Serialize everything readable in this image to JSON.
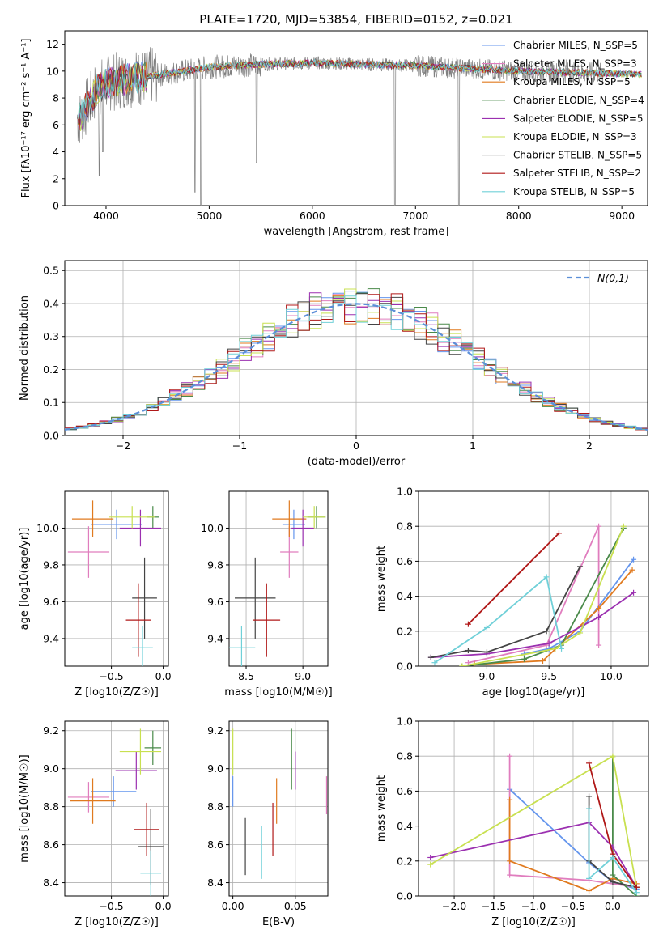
{
  "chart_data": [
    {
      "id": "spectrum",
      "type": "line",
      "title": "PLATE=1720, MJD=53854, FIBERID=0152, z=0.021",
      "xlabel": "wavelength [Angstrom, rest frame]",
      "ylabel": "Flux [fλ10⁻¹⁷ erg cm⁻² s⁻¹ A⁻¹]",
      "xlim": [
        3600,
        9250
      ],
      "ylim": [
        0,
        13
      ],
      "xticks": [
        4000,
        5000,
        6000,
        7000,
        8000,
        9000
      ],
      "yticks": [
        0,
        2,
        4,
        6,
        8,
        10,
        12
      ],
      "legend_position": "upper-right",
      "grid": false,
      "series": [
        {
          "name": "Chabrier MILES, N_SSP=5",
          "color": "#6495ed"
        },
        {
          "name": "Salpeter MILES, N_SSP=3",
          "color": "#e07dbe"
        },
        {
          "name": "Kroupa MILES, N_SSP=5",
          "color": "#e07a1f"
        },
        {
          "name": "Chabrier ELODIE, N_SSP=4",
          "color": "#4a8a4a"
        },
        {
          "name": "Salpeter ELODIE, N_SSP=5",
          "color": "#9b30b0"
        },
        {
          "name": "Kroupa ELODIE, N_SSP=3",
          "color": "#c8e050"
        },
        {
          "name": "Chabrier STELIB, N_SSP=5",
          "color": "#444444"
        },
        {
          "name": "Salpeter STELIB, N_SSP=2",
          "color": "#b01818"
        },
        {
          "name": "Kroupa STELIB, N_SSP=5",
          "color": "#70d0d8"
        }
      ],
      "data_color": "#808080",
      "continuum": [
        [
          3750,
          6.5
        ],
        [
          3900,
          8.5
        ],
        [
          4000,
          9.1
        ],
        [
          4200,
          9.4
        ],
        [
          4500,
          9.7
        ],
        [
          5000,
          10.3
        ],
        [
          5500,
          10.5
        ],
        [
          6000,
          10.6
        ],
        [
          6500,
          10.5
        ],
        [
          7000,
          10.4
        ],
        [
          7500,
          10.2
        ],
        [
          8000,
          10.0
        ],
        [
          8500,
          9.9
        ],
        [
          9000,
          9.8
        ],
        [
          9200,
          9.75
        ]
      ],
      "absorption_dips": [
        {
          "x": 3934,
          "y": 2.2
        },
        {
          "x": 3968,
          "y": 4.0
        },
        {
          "x": 4861,
          "y": 1.0
        },
        {
          "x": 4920,
          "y": 0.0
        },
        {
          "x": 5460,
          "y": 3.2
        },
        {
          "x": 6800,
          "y": 0.0
        },
        {
          "x": 7420,
          "y": 0.0
        }
      ]
    },
    {
      "id": "residuals",
      "type": "histogram",
      "xlabel": "(data-model)/error",
      "ylabel": "Normed distribution",
      "xlim": [
        -2.5,
        2.5
      ],
      "ylim": [
        0,
        0.53
      ],
      "xticks": [
        -2,
        -1,
        0,
        1,
        2
      ],
      "yticks": [
        0.0,
        0.1,
        0.2,
        0.3,
        0.4,
        0.5
      ],
      "grid": true,
      "reference_curve": {
        "name": "N(0,1)",
        "mean": 0,
        "sigma": 1,
        "color": "#5b8fd8"
      },
      "bin_width": 0.1
    },
    {
      "id": "age_vs_Z",
      "type": "errorbar",
      "xlabel": "Z [log10(Z/Z☉)]",
      "ylabel": "age  [log10(age/yr)]",
      "xlim": [
        -0.95,
        0.05
      ],
      "ylim": [
        9.25,
        10.2
      ],
      "xticks": [
        -0.5,
        0.0
      ],
      "yticks": [
        9.4,
        9.6,
        9.8,
        10.0
      ],
      "points": [
        {
          "c": "#6495ed",
          "x": -0.45,
          "xe": 0.25,
          "y": 10.02,
          "ye": 0.08
        },
        {
          "c": "#e07dbe",
          "x": -0.72,
          "xe": 0.2,
          "y": 9.87,
          "ye": 0.14
        },
        {
          "c": "#e07a1f",
          "x": -0.68,
          "xe": 0.2,
          "y": 10.05,
          "ye": 0.1
        },
        {
          "c": "#4a8a4a",
          "x": -0.1,
          "xe": 0.06,
          "y": 10.06,
          "ye": 0.06
        },
        {
          "c": "#9b30b0",
          "x": -0.22,
          "xe": 0.2,
          "y": 10.0,
          "ye": 0.1
        },
        {
          "c": "#c8e050",
          "x": -0.3,
          "xe": 0.22,
          "y": 10.06,
          "ye": 0.06
        },
        {
          "c": "#444444",
          "x": -0.18,
          "xe": 0.12,
          "y": 9.62,
          "ye": 0.22
        },
        {
          "c": "#b01818",
          "x": -0.24,
          "xe": 0.12,
          "y": 9.5,
          "ye": 0.2
        },
        {
          "c": "#70d0d8",
          "x": -0.2,
          "xe": 0.1,
          "y": 9.35,
          "ye": 0.12
        }
      ]
    },
    {
      "id": "age_vs_mass",
      "type": "errorbar",
      "xlabel": "mass [log10(M/M☉)]",
      "ylabel": "",
      "xlim": [
        8.35,
        9.22
      ],
      "ylim": [
        9.25,
        10.2
      ],
      "xticks": [
        8.5,
        9.0
      ],
      "yticks": [
        9.4,
        9.6,
        9.8,
        10.0
      ],
      "points": [
        {
          "c": "#6495ed",
          "x": 8.92,
          "xe": 0.1,
          "y": 10.02,
          "ye": 0.08
        },
        {
          "c": "#e07dbe",
          "x": 8.88,
          "xe": 0.08,
          "y": 9.87,
          "ye": 0.14
        },
        {
          "c": "#e07a1f",
          "x": 8.88,
          "xe": 0.15,
          "y": 10.05,
          "ye": 0.1
        },
        {
          "c": "#4a8a4a",
          "x": 9.12,
          "xe": 0.08,
          "y": 10.06,
          "ye": 0.06
        },
        {
          "c": "#9b30b0",
          "x": 9.0,
          "xe": 0.1,
          "y": 10.0,
          "ye": 0.1
        },
        {
          "c": "#c8e050",
          "x": 9.1,
          "xe": 0.1,
          "y": 10.06,
          "ye": 0.06
        },
        {
          "c": "#444444",
          "x": 8.58,
          "xe": 0.18,
          "y": 9.62,
          "ye": 0.22
        },
        {
          "c": "#b01818",
          "x": 8.68,
          "xe": 0.12,
          "y": 9.5,
          "ye": 0.2
        },
        {
          "c": "#70d0d8",
          "x": 8.46,
          "xe": 0.12,
          "y": 9.35,
          "ye": 0.12
        }
      ]
    },
    {
      "id": "weight_vs_age",
      "type": "line",
      "xlabel": "age  [log10(age/yr)]",
      "ylabel": "mass weight",
      "xlim": [
        8.45,
        10.3
      ],
      "ylim": [
        0,
        1.0
      ],
      "xticks": [
        9.0,
        9.5,
        10.0
      ],
      "yticks": [
        0.0,
        0.2,
        0.4,
        0.6,
        0.8,
        1.0
      ],
      "series": [
        {
          "c": "#6495ed",
          "pts": [
            [
              9.3,
              0.07
            ],
            [
              9.5,
              0.1
            ],
            [
              9.75,
              0.2
            ],
            [
              10.18,
              0.61
            ]
          ]
        },
        {
          "c": "#e07dbe",
          "pts": [
            [
              8.85,
              0.02
            ],
            [
              9.48,
              0.12
            ],
            [
              9.9,
              0.8
            ],
            [
              9.9,
              0.12
            ]
          ]
        },
        {
          "c": "#e07a1f",
          "pts": [
            [
              8.9,
              0.01
            ],
            [
              9.45,
              0.03
            ],
            [
              9.9,
              0.33
            ],
            [
              10.17,
              0.55
            ]
          ]
        },
        {
          "c": "#4a8a4a",
          "pts": [
            [
              8.8,
              0.0
            ],
            [
              9.3,
              0.04
            ],
            [
              9.6,
              0.12
            ],
            [
              10.1,
              0.79
            ]
          ]
        },
        {
          "c": "#9b30b0",
          "pts": [
            [
              8.55,
              0.05
            ],
            [
              9.0,
              0.07
            ],
            [
              9.5,
              0.13
            ],
            [
              9.9,
              0.28
            ],
            [
              10.18,
              0.42
            ]
          ]
        },
        {
          "c": "#c8e050",
          "pts": [
            [
              8.8,
              0.0
            ],
            [
              9.55,
              0.1
            ],
            [
              9.75,
              0.19
            ],
            [
              10.1,
              0.8
            ]
          ]
        },
        {
          "c": "#444444",
          "pts": [
            [
              8.55,
              0.05
            ],
            [
              8.85,
              0.09
            ],
            [
              9.0,
              0.08
            ],
            [
              9.48,
              0.2
            ],
            [
              9.75,
              0.57
            ]
          ]
        },
        {
          "c": "#b01818",
          "pts": [
            [
              8.85,
              0.24
            ],
            [
              9.58,
              0.76
            ]
          ]
        },
        {
          "c": "#70d0d8",
          "pts": [
            [
              8.58,
              0.02
            ],
            [
              9.0,
              0.22
            ],
            [
              9.48,
              0.51
            ],
            [
              9.6,
              0.1
            ]
          ]
        }
      ]
    },
    {
      "id": "mass_vs_Z",
      "type": "errorbar",
      "xlabel": "Z [log10(Z/Z☉)]",
      "ylabel": "mass [log10(M/M☉)]",
      "xlim": [
        -0.95,
        0.05
      ],
      "ylim": [
        8.33,
        9.25
      ],
      "xticks": [
        -0.5,
        0.0
      ],
      "yticks": [
        8.4,
        8.6,
        8.8,
        9.0,
        9.2
      ],
      "points": [
        {
          "c": "#6495ed",
          "x": -0.48,
          "xe": 0.22,
          "y": 8.88,
          "ye": 0.08
        },
        {
          "c": "#e07dbe",
          "x": -0.72,
          "xe": 0.2,
          "y": 8.85,
          "ye": 0.08
        },
        {
          "c": "#e07a1f",
          "x": -0.68,
          "xe": 0.22,
          "y": 8.83,
          "ye": 0.12
        },
        {
          "c": "#4a8a4a",
          "x": -0.1,
          "xe": 0.08,
          "y": 9.11,
          "ye": 0.09
        },
        {
          "c": "#9b30b0",
          "x": -0.26,
          "xe": 0.2,
          "y": 8.99,
          "ye": 0.1
        },
        {
          "c": "#c8e050",
          "x": -0.22,
          "xe": 0.2,
          "y": 9.09,
          "ye": 0.12
        },
        {
          "c": "#444444",
          "x": -0.12,
          "xe": 0.12,
          "y": 8.59,
          "ye": 0.2
        },
        {
          "c": "#b01818",
          "x": -0.16,
          "xe": 0.12,
          "y": 8.68,
          "ye": 0.14
        },
        {
          "c": "#70d0d8",
          "x": -0.12,
          "xe": 0.1,
          "y": 8.45,
          "ye": 0.12
        }
      ]
    },
    {
      "id": "mass_vs_ebv",
      "type": "errorbar",
      "xlabel": "E(B-V)",
      "ylabel": "",
      "xlim": [
        -0.003,
        0.076
      ],
      "ylim": [
        8.33,
        9.25
      ],
      "xticks": [
        0.0,
        0.05
      ],
      "xtick_labels": [
        "0.00",
        "0.05"
      ],
      "yticks": [
        8.4,
        8.6,
        8.8,
        9.0,
        9.2
      ],
      "points": [
        {
          "c": "#6495ed",
          "x": 0.0,
          "xe": 0,
          "y": 8.88,
          "ye": 0.08
        },
        {
          "c": "#e07dbe",
          "x": 0.075,
          "xe": 0,
          "y": 8.86,
          "ye": 0.1
        },
        {
          "c": "#e07a1f",
          "x": 0.035,
          "xe": 0,
          "y": 8.83,
          "ye": 0.12
        },
        {
          "c": "#4a8a4a",
          "x": 0.047,
          "xe": 0,
          "y": 9.05,
          "ye": 0.16
        },
        {
          "c": "#9b30b0",
          "x": 0.05,
          "xe": 0,
          "y": 8.99,
          "ye": 0.1
        },
        {
          "c": "#c8e050",
          "x": 0.0,
          "xe": 0,
          "y": 9.09,
          "ye": 0.12
        },
        {
          "c": "#444444",
          "x": 0.01,
          "xe": 0,
          "y": 8.59,
          "ye": 0.15
        },
        {
          "c": "#b01818",
          "x": 0.032,
          "xe": 0,
          "y": 8.68,
          "ye": 0.14
        },
        {
          "c": "#70d0d8",
          "x": 0.023,
          "xe": 0,
          "y": 8.56,
          "ye": 0.14
        }
      ]
    },
    {
      "id": "weight_vs_Z",
      "type": "line",
      "xlabel": "Z [log10(Z/Z☉)]",
      "ylabel": "mass weight",
      "xlim": [
        -2.45,
        0.45
      ],
      "ylim": [
        0,
        1.0
      ],
      "xticks": [
        -2.0,
        -1.5,
        -1.0,
        -0.5,
        0.0
      ],
      "series": [
        {
          "c": "#6495ed",
          "pts": [
            [
              -1.3,
              0.61
            ],
            [
              -0.3,
              0.19
            ],
            [
              0.0,
              0.08
            ],
            [
              0.3,
              0.04
            ]
          ]
        },
        {
          "c": "#e07dbe",
          "pts": [
            [
              -1.3,
              0.8
            ],
            [
              -1.3,
              0.12
            ],
            [
              -0.3,
              0.09
            ],
            [
              0.3,
              0.05
            ]
          ]
        },
        {
          "c": "#e07a1f",
          "pts": [
            [
              -1.3,
              0.55
            ],
            [
              -1.3,
              0.2
            ],
            [
              -0.3,
              0.03
            ],
            [
              0.0,
              0.1
            ],
            [
              0.3,
              0.07
            ]
          ]
        },
        {
          "c": "#4a8a4a",
          "pts": [
            [
              0.0,
              0.79
            ],
            [
              0.0,
              0.12
            ],
            [
              0.3,
              0.0
            ]
          ]
        },
        {
          "c": "#9b30b0",
          "pts": [
            [
              -2.3,
              0.22
            ],
            [
              -0.3,
              0.42
            ],
            [
              0.0,
              0.28
            ],
            [
              0.3,
              0.05
            ]
          ]
        },
        {
          "c": "#c8e050",
          "pts": [
            [
              -2.3,
              0.18
            ],
            [
              0.0,
              0.8
            ],
            [
              0.3,
              0.05
            ]
          ]
        },
        {
          "c": "#444444",
          "pts": [
            [
              -0.3,
              0.57
            ],
            [
              -0.3,
              0.2
            ],
            [
              0.0,
              0.08
            ],
            [
              0.3,
              0.05
            ]
          ]
        },
        {
          "c": "#b01818",
          "pts": [
            [
              -0.3,
              0.76
            ],
            [
              0.0,
              0.24
            ],
            [
              0.3,
              0.05
            ]
          ]
        },
        {
          "c": "#70d0d8",
          "pts": [
            [
              -0.3,
              0.5
            ],
            [
              -0.3,
              0.1
            ],
            [
              0.0,
              0.22
            ],
            [
              0.3,
              0.02
            ]
          ]
        }
      ]
    }
  ]
}
